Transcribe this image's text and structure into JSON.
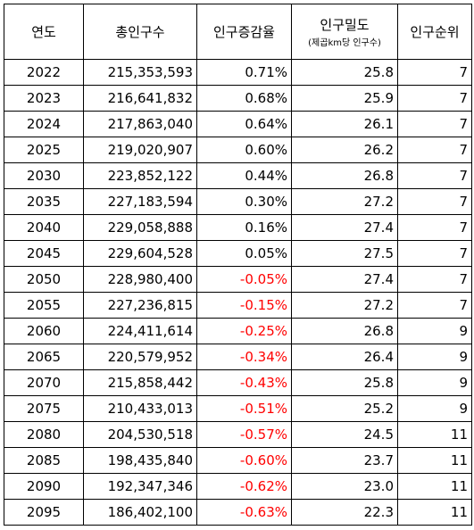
{
  "headers": {
    "year": "연도",
    "population": "총인구수",
    "growth": "인구증감율",
    "density": "인구밀도",
    "density_unit": "(제곱km당 인구수)",
    "rank": "인구순위"
  },
  "rows": [
    {
      "year": "2022",
      "population": "215,353,593",
      "growth": "0.71%",
      "density": "25.8",
      "rank": "7"
    },
    {
      "year": "2023",
      "population": "216,641,832",
      "growth": "0.68%",
      "density": "25.9",
      "rank": "7"
    },
    {
      "year": "2024",
      "population": "217,863,040",
      "growth": "0.64%",
      "density": "26.1",
      "rank": "7"
    },
    {
      "year": "2025",
      "population": "219,020,907",
      "growth": "0.60%",
      "density": "26.2",
      "rank": "7"
    },
    {
      "year": "2030",
      "population": "223,852,122",
      "growth": "0.44%",
      "density": "26.8",
      "rank": "7"
    },
    {
      "year": "2035",
      "population": "227,183,594",
      "growth": "0.30%",
      "density": "27.2",
      "rank": "7"
    },
    {
      "year": "2040",
      "population": "229,058,888",
      "growth": "0.16%",
      "density": "27.4",
      "rank": "7"
    },
    {
      "year": "2045",
      "population": "229,604,528",
      "growth": "0.05%",
      "density": "27.5",
      "rank": "7"
    },
    {
      "year": "2050",
      "population": "228,980,400",
      "growth": "-0.05%",
      "density": "27.4",
      "rank": "7"
    },
    {
      "year": "2055",
      "population": "227,236,815",
      "growth": "-0.15%",
      "density": "27.2",
      "rank": "7"
    },
    {
      "year": "2060",
      "population": "224,411,614",
      "growth": "-0.25%",
      "density": "26.8",
      "rank": "9"
    },
    {
      "year": "2065",
      "population": "220,579,952",
      "growth": "-0.34%",
      "density": "26.4",
      "rank": "9"
    },
    {
      "year": "2070",
      "population": "215,858,442",
      "growth": "-0.43%",
      "density": "25.8",
      "rank": "9"
    },
    {
      "year": "2075",
      "population": "210,433,013",
      "growth": "-0.51%",
      "density": "25.2",
      "rank": "9"
    },
    {
      "year": "2080",
      "population": "204,530,518",
      "growth": "-0.57%",
      "density": "24.5",
      "rank": "11"
    },
    {
      "year": "2085",
      "population": "198,435,840",
      "growth": "-0.60%",
      "density": "23.7",
      "rank": "11"
    },
    {
      "year": "2090",
      "population": "192,347,346",
      "growth": "-0.62%",
      "density": "23.0",
      "rank": "11"
    },
    {
      "year": "2095",
      "population": "186,402,100",
      "growth": "-0.63%",
      "density": "22.3",
      "rank": "11"
    }
  ],
  "colors": {
    "negative": "#ff0000",
    "text": "#000000",
    "border": "#000000"
  }
}
